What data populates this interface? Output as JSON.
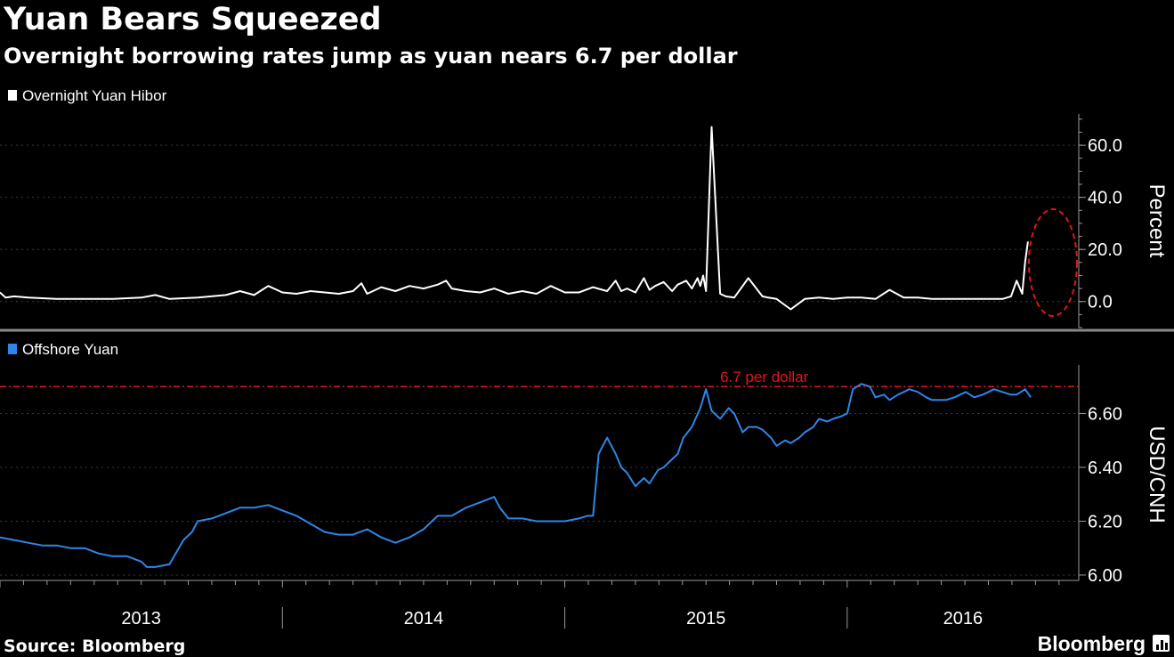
{
  "title": "Yuan Bears Squeezed",
  "subtitle": "Overnight borrowing rates jump as yuan nears 6.7 per dollar",
  "source": "Source: Bloomberg",
  "brand": "Bloomberg",
  "colors": {
    "background": "#000000",
    "hibor_line": "#ffffff",
    "yuan_line": "#2f86e8",
    "threshold": "#e0141e",
    "axis": "#9a9a9a",
    "grid": "#3a3a3a",
    "divider": "#8a8a8a"
  },
  "x_axis": {
    "labels": [
      "2013",
      "2014",
      "2015",
      "2016"
    ],
    "range": [
      2013.0,
      2016.82
    ]
  },
  "chart_data": [
    {
      "type": "line",
      "legend": "Overnight Yuan Hibor",
      "ylabel": "Percent",
      "ylim": [
        -10,
        72
      ],
      "yticks": [
        0,
        20,
        40,
        60
      ],
      "ytick_labels": [
        "0.0",
        "20.0",
        "40.0",
        "60.0"
      ],
      "annotations": [
        "red dashed ellipse highlighting the late-2016 spike"
      ],
      "series": [
        {
          "x": [
            2013.0,
            2013.02,
            2013.05,
            2013.1,
            2013.2,
            2013.3,
            2013.4,
            2013.5,
            2013.55,
            2013.6,
            2013.7,
            2013.8,
            2013.85,
            2013.9,
            2013.95,
            2014.0,
            2014.05,
            2014.1,
            2014.15,
            2014.2,
            2014.25,
            2014.28,
            2014.3,
            2014.35,
            2014.4,
            2014.45,
            2014.5,
            2014.55,
            2014.58,
            2014.6,
            2014.65,
            2014.7,
            2014.75,
            2014.8,
            2014.85,
            2014.9,
            2014.95,
            2015.0,
            2015.05,
            2015.1,
            2015.15,
            2015.18,
            2015.2,
            2015.22,
            2015.25,
            2015.28,
            2015.3,
            2015.32,
            2015.35,
            2015.38,
            2015.4,
            2015.43,
            2015.45,
            2015.47,
            2015.48,
            2015.49,
            2015.5,
            2015.52,
            2015.55,
            2015.57,
            2015.6,
            2015.65,
            2015.7,
            2015.72,
            2015.75,
            2015.8,
            2015.85,
            2015.9,
            2015.95,
            2016.0,
            2016.05,
            2016.1,
            2016.15,
            2016.2,
            2016.25,
            2016.3,
            2016.35,
            2016.4,
            2016.45,
            2016.5,
            2016.55,
            2016.58,
            2016.6,
            2016.62,
            2016.63,
            2016.64
          ],
          "y": [
            3.5,
            1.5,
            2.0,
            1.5,
            1.0,
            1.0,
            1.0,
            1.5,
            2.5,
            1.0,
            1.5,
            2.5,
            4.0,
            2.5,
            6.0,
            3.5,
            3.0,
            4.0,
            3.5,
            3.0,
            4.0,
            7.0,
            3.0,
            5.5,
            4.0,
            6.0,
            5.0,
            6.5,
            8.0,
            5.0,
            4.0,
            3.5,
            5.0,
            3.0,
            4.0,
            3.0,
            6.0,
            3.5,
            3.5,
            5.5,
            4.0,
            8.0,
            4.0,
            5.0,
            3.5,
            9.0,
            4.5,
            6.0,
            7.5,
            4.0,
            6.5,
            8.0,
            5.0,
            9.0,
            6.0,
            10.0,
            4.0,
            67.0,
            3.0,
            2.0,
            1.5,
            9.0,
            2.0,
            1.5,
            1.0,
            -3.0,
            1.0,
            1.5,
            1.0,
            1.5,
            1.5,
            1.0,
            4.5,
            1.5,
            1.5,
            1.0,
            1.0,
            1.0,
            1.0,
            1.0,
            1.0,
            2.0,
            8.0,
            3.0,
            15.0,
            23.0
          ]
        }
      ]
    },
    {
      "type": "line",
      "legend": "Offshore Yuan",
      "ylabel": "USD/CNH",
      "ylim": [
        5.98,
        6.78
      ],
      "yticks": [
        6.0,
        6.2,
        6.4,
        6.6
      ],
      "ytick_labels": [
        "6.00",
        "6.20",
        "6.40",
        "6.60"
      ],
      "reference_line": {
        "value": 6.7,
        "label": "6.7 per dollar"
      },
      "series": [
        {
          "x": [
            2013.0,
            2013.05,
            2013.1,
            2013.15,
            2013.2,
            2013.25,
            2013.3,
            2013.35,
            2013.4,
            2013.45,
            2013.5,
            2013.52,
            2013.55,
            2013.6,
            2013.65,
            2013.68,
            2013.7,
            2013.75,
            2013.8,
            2013.85,
            2013.9,
            2013.95,
            2014.0,
            2014.05,
            2014.1,
            2014.15,
            2014.2,
            2014.25,
            2014.3,
            2014.35,
            2014.4,
            2014.45,
            2014.5,
            2014.55,
            2014.6,
            2014.65,
            2014.7,
            2014.75,
            2014.77,
            2014.8,
            2014.85,
            2014.9,
            2014.95,
            2015.0,
            2015.05,
            2015.08,
            2015.1,
            2015.12,
            2015.15,
            2015.18,
            2015.2,
            2015.22,
            2015.25,
            2015.28,
            2015.3,
            2015.33,
            2015.35,
            2015.38,
            2015.4,
            2015.42,
            2015.45,
            2015.48,
            2015.5,
            2015.52,
            2015.55,
            2015.58,
            2015.6,
            2015.63,
            2015.65,
            2015.68,
            2015.7,
            2015.73,
            2015.75,
            2015.78,
            2015.8,
            2015.83,
            2015.85,
            2015.88,
            2015.9,
            2015.93,
            2015.95,
            2015.98,
            2016.0,
            2016.02,
            2016.05,
            2016.08,
            2016.1,
            2016.13,
            2016.15,
            2016.18,
            2016.2,
            2016.22,
            2016.25,
            2016.28,
            2016.3,
            2016.32,
            2016.35,
            2016.38,
            2016.4,
            2016.42,
            2016.45,
            2016.48,
            2016.5,
            2016.52,
            2016.55,
            2016.58,
            2016.6,
            2016.63,
            2016.65
          ],
          "y": [
            6.14,
            6.13,
            6.12,
            6.11,
            6.11,
            6.1,
            6.1,
            6.08,
            6.07,
            6.07,
            6.05,
            6.03,
            6.03,
            6.04,
            6.13,
            6.16,
            6.2,
            6.21,
            6.23,
            6.25,
            6.25,
            6.26,
            6.24,
            6.22,
            6.19,
            6.16,
            6.15,
            6.15,
            6.17,
            6.14,
            6.12,
            6.14,
            6.17,
            6.22,
            6.22,
            6.25,
            6.27,
            6.29,
            6.25,
            6.21,
            6.21,
            6.2,
            6.2,
            6.2,
            6.21,
            6.22,
            6.22,
            6.45,
            6.51,
            6.45,
            6.4,
            6.38,
            6.33,
            6.36,
            6.34,
            6.39,
            6.4,
            6.43,
            6.45,
            6.51,
            6.55,
            6.62,
            6.69,
            6.61,
            6.58,
            6.62,
            6.6,
            6.53,
            6.55,
            6.55,
            6.54,
            6.51,
            6.48,
            6.5,
            6.49,
            6.51,
            6.53,
            6.55,
            6.58,
            6.57,
            6.58,
            6.59,
            6.6,
            6.69,
            6.71,
            6.7,
            6.66,
            6.67,
            6.65,
            6.67,
            6.68,
            6.69,
            6.68,
            6.66,
            6.65,
            6.65,
            6.65,
            6.66,
            6.67,
            6.68,
            6.66,
            6.67,
            6.68,
            6.69,
            6.68,
            6.67,
            6.67,
            6.69,
            6.66
          ]
        }
      ]
    }
  ]
}
